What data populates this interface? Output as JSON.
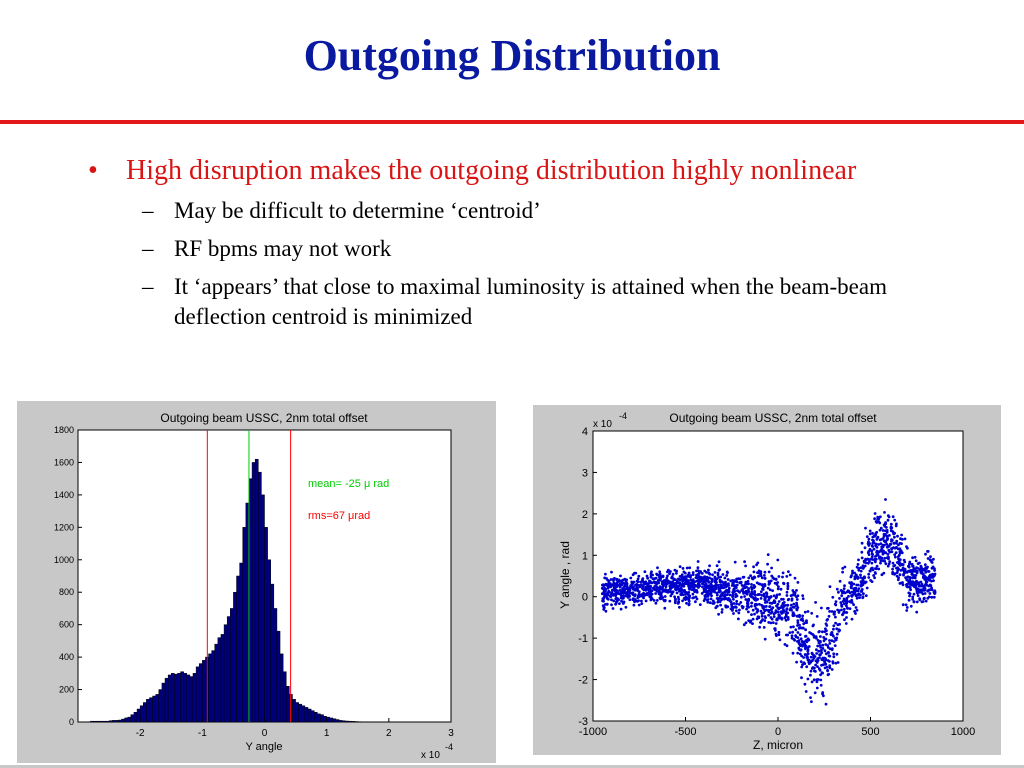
{
  "slide": {
    "title": "Outgoing Distribution",
    "bullet": "High disruption makes the outgoing distribution highly nonlinear",
    "bullet_marker": "•",
    "sub_marker": "–",
    "subbullets": [
      "May be difficult to determine ‘centroid’",
      "RF bpms may not work",
      "It ‘appears’ that close to maximal luminosity is attained when the beam-beam deflection centroid is minimized"
    ],
    "colors": {
      "title": "#0a1aa0",
      "rule": "#e31818",
      "bullet": "#d81414",
      "bars": "#00007f",
      "mean_line": "#00cc00",
      "rms_line": "#ff0000"
    }
  },
  "chart_data": [
    {
      "type": "bar",
      "title": "Outgoing beam USSC, 2nm total offset",
      "xlabel": "Y angle",
      "x_multiplier": "x 10",
      "x_exponent": "-4",
      "xlim": [
        -3,
        3
      ],
      "ylim": [
        0,
        1800
      ],
      "xticks": [
        "-2",
        "-1",
        "0",
        "1",
        "2",
        "3"
      ],
      "yticks": [
        "0",
        "200",
        "400",
        "600",
        "800",
        "1000",
        "1200",
        "1400",
        "1600",
        "1800"
      ],
      "annotations": {
        "mean": "mean= -25 μ rad",
        "rms": "rms=67 μrad"
      },
      "vlines": {
        "mean": -0.25,
        "rms_low": -0.92,
        "rms_high": 0.42
      },
      "bin_edges_start": -2.9,
      "bin_width": 0.05,
      "values": [
        0,
        0,
        5,
        5,
        5,
        5,
        5,
        5,
        8,
        10,
        10,
        12,
        18,
        25,
        30,
        45,
        60,
        80,
        100,
        120,
        140,
        150,
        160,
        170,
        200,
        240,
        270,
        290,
        300,
        295,
        300,
        310,
        300,
        290,
        280,
        300,
        340,
        360,
        380,
        400,
        420,
        440,
        480,
        520,
        540,
        600,
        650,
        700,
        800,
        900,
        980,
        1200,
        1350,
        1500,
        1600,
        1620,
        1540,
        1400,
        1200,
        1000,
        850,
        700,
        560,
        420,
        310,
        220,
        170,
        140,
        120,
        110,
        100,
        90,
        80,
        70,
        60,
        50,
        45,
        35,
        30,
        25,
        20,
        15,
        10,
        8,
        6,
        5,
        4,
        3,
        2,
        1,
        1,
        1,
        0,
        0,
        0,
        0,
        0,
        0,
        0
      ]
    },
    {
      "type": "scatter",
      "title": "Outgoing beam USSC, 2nm total offset",
      "xlabel": "Z, micron",
      "ylabel": "Y angle , rad",
      "y_multiplier": "x 10",
      "y_exponent": "-4",
      "xlim": [
        -1000,
        1000
      ],
      "ylim": [
        -3,
        4
      ],
      "xticks": [
        "-1000",
        "-500",
        "0",
        "500",
        "1000"
      ],
      "yticks": [
        "-3",
        "-2",
        "-1",
        "0",
        "1",
        "2",
        "3",
        "4"
      ],
      "color": "#0000cc",
      "note": "dense band of points: flat near 0 for z<-400, downward lobe to about -2.5 near z=200, upward plume to about 2 near z=500-700"
    }
  ]
}
